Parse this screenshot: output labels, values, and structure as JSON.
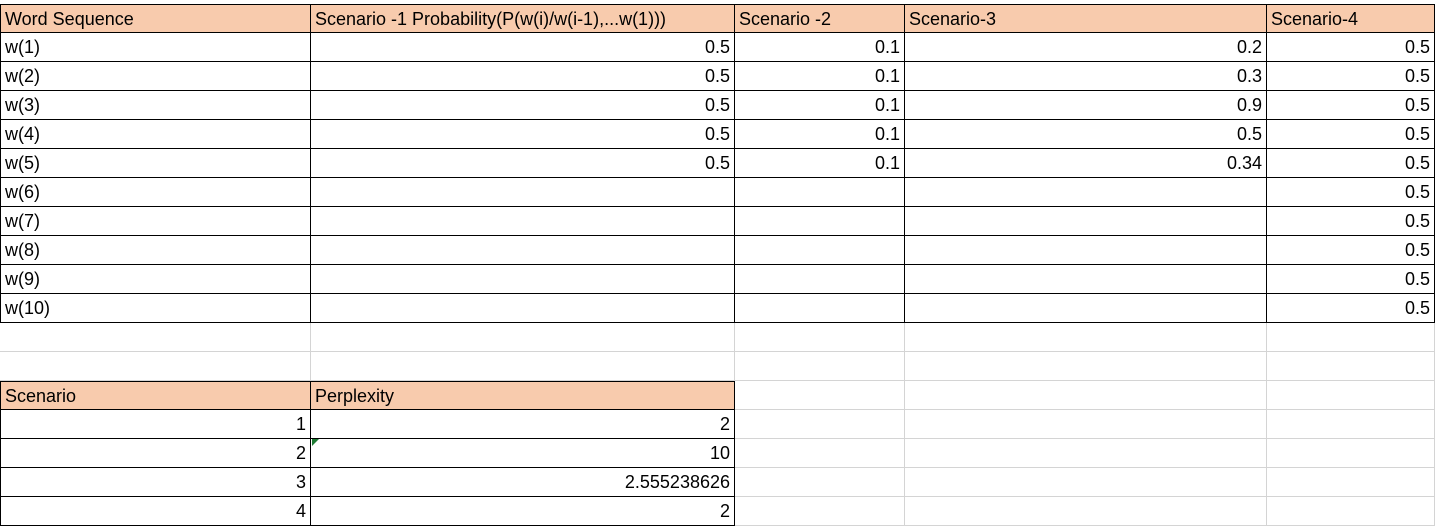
{
  "table1": {
    "headers": [
      "Word Sequence",
      "Scenario -1 Probability(P(w(i)/w(i-1),...w(1)))",
      "Scenario -2",
      "Scenario-3",
      "Scenario-4"
    ],
    "rows": [
      [
        "w(1)",
        "0.5",
        "0.1",
        "0.2",
        "0.5"
      ],
      [
        "w(2)",
        "0.5",
        "0.1",
        "0.3",
        "0.5"
      ],
      [
        "w(3)",
        "0.5",
        "0.1",
        "0.9",
        "0.5"
      ],
      [
        "w(4)",
        "0.5",
        "0.1",
        "0.5",
        "0.5"
      ],
      [
        "w(5)",
        "0.5",
        "0.1",
        "0.34",
        "0.5"
      ],
      [
        "w(6)",
        "",
        "",
        "",
        "0.5"
      ],
      [
        "w(7)",
        "",
        "",
        "",
        "0.5"
      ],
      [
        "w(8)",
        "",
        "",
        "",
        "0.5"
      ],
      [
        "w(9)",
        "",
        "",
        "",
        "0.5"
      ],
      [
        "w(10)",
        "",
        "",
        "",
        "0.5"
      ]
    ]
  },
  "table2": {
    "headers": [
      "Scenario",
      "Perplexity"
    ],
    "rows": [
      [
        "1",
        "2"
      ],
      [
        "2",
        "10"
      ],
      [
        "3",
        "2.555238626"
      ],
      [
        "4",
        "2"
      ]
    ]
  },
  "colors": {
    "header_fill": "#f8cbad",
    "gridline": "#d4d4d4",
    "border": "#000000",
    "selection": "#217346"
  }
}
